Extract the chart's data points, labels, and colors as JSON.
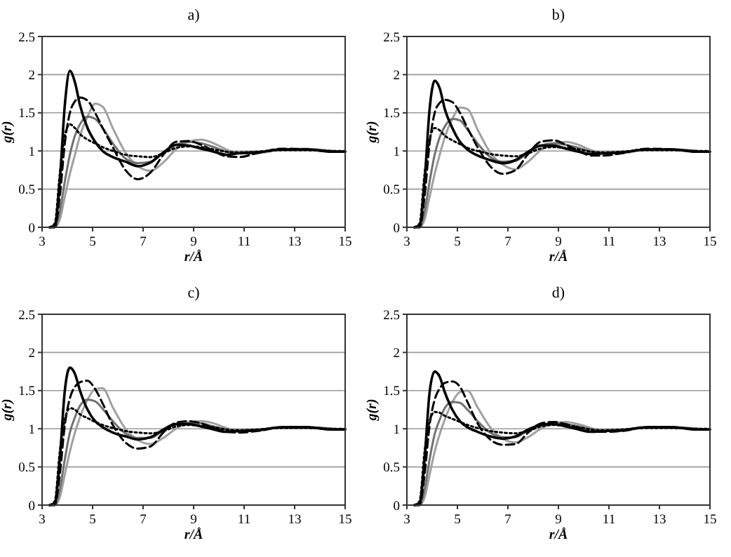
{
  "chart_data": [
    {
      "type": "line",
      "title": "a)",
      "xlabel": "r/Å",
      "ylabel": "g(r)",
      "xlim": [
        3,
        15
      ],
      "xticks": [
        3,
        5,
        7,
        9,
        11,
        13,
        15
      ],
      "ylim": [
        0,
        2.5
      ],
      "yticks": [
        0,
        0.5,
        1,
        1.5,
        2,
        2.5
      ],
      "grid": "y",
      "marker": "none",
      "x": [
        3.3,
        3.5,
        3.7,
        3.9,
        4.1,
        4.3,
        4.5,
        4.8,
        5.1,
        5.4,
        5.8,
        6.3,
        6.8,
        7.3,
        7.8,
        8.3,
        8.8,
        9.3,
        9.8,
        10.3,
        10.8,
        11.5,
        12.5,
        13.5,
        14.5,
        15
      ],
      "series": [
        {
          "color": "#a0a0a0",
          "line_style": "solid",
          "values": [
            0,
            0,
            0.1,
            0.4,
            0.7,
            0.95,
            1.2,
            1.45,
            1.62,
            1.58,
            1.3,
            0.98,
            0.8,
            0.74,
            0.85,
            1.02,
            1.12,
            1.15,
            1.1,
            1.02,
            0.97,
            0.97,
            1.02,
            1.03,
            1,
            0.99
          ]
        },
        {
          "color": "#707070",
          "line_style": "solid",
          "values": [
            0,
            0,
            0.2,
            0.6,
            0.95,
            1.2,
            1.35,
            1.45,
            1.42,
            1.3,
            1.1,
            0.9,
            0.84,
            0.86,
            0.98,
            1.08,
            1.12,
            1.1,
            1.05,
            0.99,
            0.97,
            0.98,
            1.02,
            1.02,
            1,
            0.99
          ]
        },
        {
          "color": "#000000",
          "line_style": "dotted",
          "values": [
            0,
            0.05,
            0.7,
            1.2,
            1.35,
            1.3,
            1.22,
            1.15,
            1.1,
            1.05,
            1,
            0.95,
            0.93,
            0.92,
            0.97,
            1.04,
            1.06,
            1.05,
            1.02,
            0.99,
            0.98,
            0.99,
            1.01,
            1.01,
            1,
            1
          ]
        },
        {
          "color": "#000000",
          "line_style": "dashed",
          "values": [
            0,
            0,
            0.4,
            1.1,
            1.5,
            1.65,
            1.7,
            1.66,
            1.5,
            1.3,
            1.05,
            0.75,
            0.63,
            0.72,
            0.95,
            1.12,
            1.13,
            1.08,
            1,
            0.93,
            0.92,
            0.97,
            1.03,
            1.02,
            0.99,
            0.99
          ]
        },
        {
          "color": "#000000",
          "line_style": "solid",
          "values": [
            0,
            0.02,
            0.6,
            1.6,
            2.05,
            1.9,
            1.6,
            1.3,
            1.12,
            1,
            0.92,
            0.86,
            0.8,
            0.85,
            0.98,
            1.08,
            1.07,
            1.03,
            0.99,
            0.95,
            0.97,
            0.98,
            1.02,
            1.02,
            0.99,
            0.99
          ]
        }
      ]
    },
    {
      "type": "line",
      "title": "b)",
      "xlabel": "r/Å",
      "ylabel": "g(r)",
      "xlim": [
        3,
        15
      ],
      "xticks": [
        3,
        5,
        7,
        9,
        11,
        13,
        15
      ],
      "ylim": [
        0,
        2.5
      ],
      "yticks": [
        0,
        0.5,
        1,
        1.5,
        2,
        2.5
      ],
      "grid": "y",
      "marker": "none",
      "x": [
        3.3,
        3.5,
        3.7,
        3.9,
        4.1,
        4.3,
        4.5,
        4.8,
        5.1,
        5.4,
        5.8,
        6.3,
        6.8,
        7.3,
        7.8,
        8.3,
        8.8,
        9.3,
        9.8,
        10.3,
        10.8,
        11.5,
        12.5,
        13.5,
        14.5,
        15
      ],
      "series": [
        {
          "color": "#a0a0a0",
          "line_style": "solid",
          "values": [
            0,
            0,
            0.1,
            0.4,
            0.7,
            0.95,
            1.18,
            1.42,
            1.57,
            1.55,
            1.28,
            0.98,
            0.82,
            0.76,
            0.86,
            1.01,
            1.1,
            1.12,
            1.08,
            1.01,
            0.97,
            0.97,
            1.02,
            1.02,
            1,
            0.99
          ]
        },
        {
          "color": "#707070",
          "line_style": "solid",
          "values": [
            0,
            0,
            0.2,
            0.6,
            0.95,
            1.18,
            1.32,
            1.42,
            1.4,
            1.28,
            1.1,
            0.92,
            0.86,
            0.87,
            0.98,
            1.07,
            1.1,
            1.08,
            1.04,
            0.99,
            0.97,
            0.98,
            1.02,
            1.02,
            1,
            0.99
          ]
        },
        {
          "color": "#000000",
          "line_style": "dotted",
          "values": [
            0,
            0.05,
            0.7,
            1.15,
            1.3,
            1.27,
            1.2,
            1.14,
            1.09,
            1.04,
            1,
            0.96,
            0.94,
            0.93,
            0.97,
            1.03,
            1.05,
            1.04,
            1.02,
            0.99,
            0.98,
            0.99,
            1.01,
            1.01,
            1,
            1
          ]
        },
        {
          "color": "#000000",
          "line_style": "dashed",
          "values": [
            0,
            0,
            0.4,
            1.1,
            1.5,
            1.63,
            1.67,
            1.64,
            1.5,
            1.3,
            1.05,
            0.8,
            0.7,
            0.75,
            0.96,
            1.12,
            1.14,
            1.08,
            1,
            0.94,
            0.94,
            0.97,
            1.03,
            1.02,
            0.99,
            0.99
          ]
        },
        {
          "color": "#000000",
          "line_style": "solid",
          "values": [
            0,
            0.02,
            0.6,
            1.55,
            1.92,
            1.82,
            1.55,
            1.3,
            1.12,
            1.02,
            0.94,
            0.88,
            0.84,
            0.88,
            0.99,
            1.07,
            1.07,
            1.03,
            0.99,
            0.96,
            0.97,
            0.98,
            1.02,
            1.02,
            0.99,
            0.99
          ]
        }
      ]
    },
    {
      "type": "line",
      "title": "c)",
      "xlabel": "r/Å",
      "ylabel": "g(r)",
      "xlim": [
        3,
        15
      ],
      "xticks": [
        3,
        5,
        7,
        9,
        11,
        13,
        15
      ],
      "ylim": [
        0,
        2.5
      ],
      "yticks": [
        0,
        0.5,
        1,
        1.5,
        2,
        2.5
      ],
      "grid": "y",
      "marker": "none",
      "x": [
        3.3,
        3.5,
        3.7,
        3.9,
        4.1,
        4.3,
        4.5,
        4.8,
        5.1,
        5.4,
        5.8,
        6.3,
        6.8,
        7.3,
        7.8,
        8.3,
        8.8,
        9.3,
        9.8,
        10.3,
        10.8,
        11.5,
        12.5,
        13.5,
        14.5,
        15
      ],
      "series": [
        {
          "color": "#a0a0a0",
          "line_style": "solid",
          "values": [
            0,
            0,
            0.1,
            0.4,
            0.7,
            0.95,
            1.15,
            1.38,
            1.52,
            1.53,
            1.28,
            1,
            0.85,
            0.8,
            0.88,
            1.0,
            1.08,
            1.1,
            1.07,
            1.01,
            0.97,
            0.97,
            1.02,
            1.02,
            1,
            0.99
          ]
        },
        {
          "color": "#707070",
          "line_style": "solid",
          "values": [
            0,
            0,
            0.2,
            0.6,
            0.95,
            1.15,
            1.3,
            1.38,
            1.36,
            1.26,
            1.1,
            0.94,
            0.88,
            0.88,
            0.98,
            1.06,
            1.08,
            1.07,
            1.03,
            0.99,
            0.97,
            0.98,
            1.02,
            1.02,
            1,
            0.99
          ]
        },
        {
          "color": "#000000",
          "line_style": "dotted",
          "values": [
            0,
            0.05,
            0.7,
            1.12,
            1.27,
            1.25,
            1.19,
            1.14,
            1.09,
            1.05,
            1.01,
            0.97,
            0.95,
            0.94,
            0.97,
            1.03,
            1.05,
            1.04,
            1.02,
            0.99,
            0.98,
            0.99,
            1.01,
            1.01,
            1,
            1
          ]
        },
        {
          "color": "#000000",
          "line_style": "dashed",
          "values": [
            0,
            0,
            0.4,
            1.05,
            1.4,
            1.55,
            1.61,
            1.63,
            1.52,
            1.33,
            1.05,
            0.82,
            0.74,
            0.77,
            0.95,
            1.08,
            1.1,
            1.07,
            1.01,
            0.96,
            0.95,
            0.97,
            1.02,
            1.02,
            0.99,
            0.99
          ]
        },
        {
          "color": "#000000",
          "line_style": "solid",
          "values": [
            0,
            0.02,
            0.6,
            1.5,
            1.8,
            1.72,
            1.5,
            1.25,
            1.1,
            1.02,
            0.95,
            0.9,
            0.86,
            0.89,
            0.99,
            1.06,
            1.06,
            1.03,
            0.99,
            0.96,
            0.97,
            0.98,
            1.02,
            1.02,
            0.99,
            0.99
          ]
        }
      ]
    },
    {
      "type": "line",
      "title": "d)",
      "xlabel": "r/Å",
      "ylabel": "g(r)",
      "xlim": [
        3,
        15
      ],
      "xticks": [
        3,
        5,
        7,
        9,
        11,
        13,
        15
      ],
      "ylim": [
        0,
        2.5
      ],
      "yticks": [
        0,
        0.5,
        1,
        1.5,
        2,
        2.5
      ],
      "grid": "y",
      "marker": "none",
      "x": [
        3.3,
        3.5,
        3.7,
        3.9,
        4.1,
        4.3,
        4.5,
        4.8,
        5.1,
        5.4,
        5.8,
        6.3,
        6.8,
        7.3,
        7.8,
        8.3,
        8.8,
        9.3,
        9.8,
        10.3,
        10.8,
        11.5,
        12.5,
        13.5,
        14.5,
        15
      ],
      "series": [
        {
          "color": "#a0a0a0",
          "line_style": "solid",
          "values": [
            0,
            0,
            0.1,
            0.4,
            0.7,
            0.93,
            1.12,
            1.35,
            1.48,
            1.5,
            1.28,
            1.02,
            0.87,
            0.82,
            0.89,
            1.0,
            1.07,
            1.09,
            1.06,
            1.01,
            0.97,
            0.97,
            1.02,
            1.02,
            1,
            0.99
          ]
        },
        {
          "color": "#707070",
          "line_style": "solid",
          "values": [
            0,
            0,
            0.2,
            0.6,
            0.93,
            1.12,
            1.27,
            1.35,
            1.34,
            1.25,
            1.1,
            0.95,
            0.89,
            0.89,
            0.98,
            1.05,
            1.07,
            1.06,
            1.03,
            0.99,
            0.97,
            0.98,
            1.02,
            1.02,
            1,
            0.99
          ]
        },
        {
          "color": "#000000",
          "line_style": "dotted",
          "values": [
            0,
            0.05,
            0.7,
            1.1,
            1.22,
            1.21,
            1.17,
            1.13,
            1.09,
            1.05,
            1.01,
            0.97,
            0.95,
            0.94,
            0.97,
            1.03,
            1.05,
            1.04,
            1.02,
            0.99,
            0.98,
            0.99,
            1.01,
            1.01,
            1,
            1
          ]
        },
        {
          "color": "#000000",
          "line_style": "dashed",
          "values": [
            0,
            0,
            0.4,
            1.05,
            1.38,
            1.53,
            1.6,
            1.62,
            1.55,
            1.35,
            1.07,
            0.86,
            0.79,
            0.8,
            0.95,
            1.07,
            1.09,
            1.06,
            1.01,
            0.96,
            0.96,
            0.97,
            1.02,
            1.02,
            0.99,
            0.99
          ]
        },
        {
          "color": "#000000",
          "line_style": "solid",
          "values": [
            0,
            0.02,
            0.6,
            1.48,
            1.75,
            1.68,
            1.48,
            1.25,
            1.1,
            1.02,
            0.96,
            0.9,
            0.87,
            0.9,
            0.99,
            1.05,
            1.06,
            1.03,
            0.99,
            0.96,
            0.97,
            0.98,
            1.02,
            1.02,
            0.99,
            0.99
          ]
        }
      ]
    }
  ]
}
